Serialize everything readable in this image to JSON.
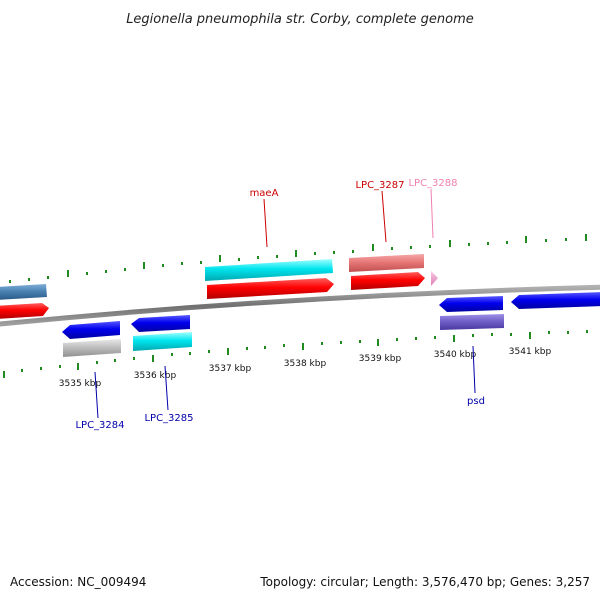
{
  "title": "Legionella pneumophila str. Corby, complete genome",
  "footer": {
    "accession": "Accession: NC_009494",
    "summary": "Topology: circular; Length: 3,576,470 bp; Genes: 3,257"
  },
  "axis": {
    "unit": "kbp",
    "tick_labels": [
      "3535 kbp",
      "3536 kbp",
      "3537 kbp",
      "3538 kbp",
      "3539 kbp",
      "3540 kbp",
      "3541 kbp"
    ]
  },
  "gene_labels": [
    {
      "name": "maeA",
      "color": "#cc0000"
    },
    {
      "name": "LPC_3287",
      "color": "#cc0000"
    },
    {
      "name": "LPC_3288",
      "color": "#f080b0"
    },
    {
      "name": "LPC_3284",
      "color": "#0000aa"
    },
    {
      "name": "LPC_3285",
      "color": "#0000aa"
    },
    {
      "name": "psd",
      "color": "#0000aa"
    }
  ],
  "colors": {
    "backbone": "#8a8a8a",
    "tick": "#1f8a1f",
    "cds_forward": "#ff0000",
    "cds_reverse": "#0000ee",
    "feature_cyan": "#00e5ee",
    "feature_salmon": "#e87878",
    "feature_gray": "#c0c0c0",
    "feature_purple": "#7060c8",
    "feature_steelblue": "#4a82b4",
    "feature_pink": "#f0a0d0"
  }
}
